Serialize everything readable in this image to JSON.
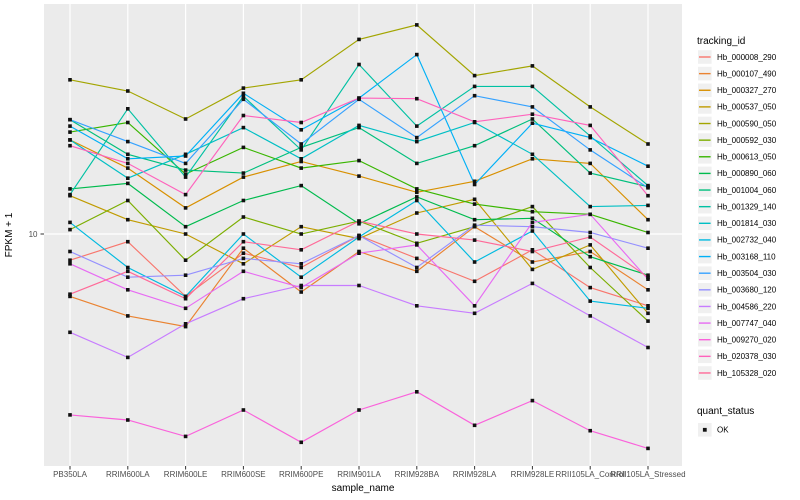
{
  "chart_data": {
    "type": "line",
    "title": "",
    "xlabel": "sample_name",
    "ylabel": "FPKM + 1",
    "y_scale": "log10",
    "y_ticks": [
      10
    ],
    "ylim": [
      2.2,
      46
    ],
    "grid": "white-on-gray",
    "panel_background": "#EBEBEB",
    "gridline_color": "#FFFFFF",
    "point_marker": "black-square",
    "legend_position": "right",
    "categories": [
      "PB350LA",
      "RRIM600LA",
      "RRIM600LE",
      "RRIM600SE",
      "RRIM600PE",
      "RRIM901LA",
      "RRIM928BA",
      "RRIM928LA",
      "RRIM928LE",
      "RRII105LA_Control",
      "RRII105LA_Stressed"
    ],
    "legend": {
      "series_title": "tracking_id",
      "status_title": "quant_status",
      "status_items": [
        {
          "label": "OK",
          "marker": "black-square"
        }
      ]
    },
    "series": [
      {
        "name": "Hb_000008_290",
        "color": "#F8766D",
        "values": [
          8.4,
          9.5,
          6.6,
          8.8,
          8.0,
          9.9,
          8.5,
          7.3,
          9.0,
          7.0,
          6.2
        ]
      },
      {
        "name": "Hb_000107_490",
        "color": "#EA8331",
        "values": [
          6.6,
          5.8,
          5.4,
          9.1,
          6.8,
          8.9,
          7.8,
          10.5,
          8.3,
          8.9,
          6.9
        ]
      },
      {
        "name": "Hb_000327_270",
        "color": "#D89000",
        "values": [
          18.7,
          15.5,
          11.9,
          14.6,
          16.2,
          14.7,
          13.2,
          14.2,
          16.5,
          16.0,
          11.0
        ]
      },
      {
        "name": "Hb_000537_050",
        "color": "#C09B00",
        "values": [
          12.9,
          11.0,
          10.0,
          8.2,
          10.5,
          9.7,
          11.5,
          12.6,
          7.9,
          9.3,
          5.9
        ]
      },
      {
        "name": "Hb_000590_050",
        "color": "#A3A500",
        "values": [
          27.9,
          25.9,
          21.5,
          26.4,
          27.9,
          36.5,
          40.2,
          28.7,
          30.6,
          23.3,
          18.2
        ]
      },
      {
        "name": "Hb_000592_030",
        "color": "#7CAE00",
        "values": [
          10.3,
          12.5,
          8.4,
          11.2,
          10.0,
          10.9,
          9.4,
          10.5,
          12.0,
          8.0,
          5.6
        ]
      },
      {
        "name": "Hb_000613_050",
        "color": "#39B600",
        "values": [
          19.7,
          21.0,
          14.9,
          17.8,
          15.5,
          16.3,
          13.5,
          12.2,
          11.6,
          11.4,
          10.1
        ]
      },
      {
        "name": "Hb_000890_060",
        "color": "#00BB4E",
        "values": [
          13.5,
          14.0,
          10.5,
          12.5,
          13.8,
          10.7,
          12.8,
          11.0,
          11.1,
          8.6,
          7.6
        ]
      },
      {
        "name": "Hb_001004_060",
        "color": "#00BF7D",
        "values": [
          21.4,
          17.0,
          15.3,
          15.0,
          17.8,
          20.3,
          16.0,
          18.0,
          21.5,
          15.0,
          13.7
        ]
      },
      {
        "name": "Hb_001329_140",
        "color": "#00C1A3",
        "values": [
          13.0,
          23.0,
          14.6,
          25.0,
          17.5,
          30.9,
          20.5,
          26.7,
          26.7,
          19.2,
          13.8
        ]
      },
      {
        "name": "Hb_001814_030",
        "color": "#00BFC4",
        "values": [
          18.7,
          14.5,
          17.0,
          20.3,
          16.5,
          20.6,
          18.5,
          21.0,
          17.0,
          12.0,
          12.1
        ]
      },
      {
        "name": "Hb_002732_040",
        "color": "#00BAE0",
        "values": [
          10.8,
          8.0,
          6.6,
          10.0,
          7.5,
          9.8,
          12.5,
          8.3,
          10.2,
          6.4,
          6.1
        ]
      },
      {
        "name": "Hb_003168_110",
        "color": "#00B0F6",
        "values": [
          20.5,
          16.5,
          16.8,
          25.5,
          20.0,
          24.7,
          33.0,
          13.9,
          20.9,
          19.0,
          15.7
        ]
      },
      {
        "name": "Hb_003504_030",
        "color": "#35A2FF",
        "values": [
          21.4,
          18.5,
          16.0,
          24.5,
          18.2,
          24.5,
          19.0,
          25.1,
          23.3,
          17.5,
          13.6
        ]
      },
      {
        "name": "Hb_003680_120",
        "color": "#9590FF",
        "values": [
          8.9,
          7.5,
          7.6,
          8.5,
          8.2,
          9.9,
          8.0,
          10.6,
          10.5,
          10.1,
          9.1
        ]
      },
      {
        "name": "Hb_004586_220",
        "color": "#C77CFF",
        "values": [
          5.2,
          4.4,
          5.5,
          6.5,
          7.1,
          7.1,
          6.2,
          5.9,
          7.2,
          5.8,
          4.7
        ]
      },
      {
        "name": "Hb_007747_040",
        "color": "#E76BF3",
        "values": [
          8.2,
          6.9,
          6.1,
          7.8,
          7.0,
          8.8,
          9.3,
          6.2,
          10.8,
          11.4,
          7.4
        ]
      },
      {
        "name": "Hb_009270_020",
        "color": "#FA62DB",
        "values": [
          3.0,
          2.9,
          2.6,
          3.1,
          2.5,
          3.1,
          3.5,
          2.8,
          3.3,
          2.7,
          2.4
        ]
      },
      {
        "name": "Hb_020378_030",
        "color": "#FF62BC",
        "values": [
          18.0,
          16.0,
          13.0,
          22.0,
          21.0,
          24.7,
          24.6,
          21.1,
          22.2,
          20.6,
          12.9
        ]
      },
      {
        "name": "Hb_105328_020",
        "color": "#FF6A98",
        "values": [
          6.7,
          7.8,
          6.5,
          9.5,
          9.0,
          10.9,
          10.0,
          9.6,
          8.9,
          9.8,
          7.5
        ]
      }
    ]
  }
}
